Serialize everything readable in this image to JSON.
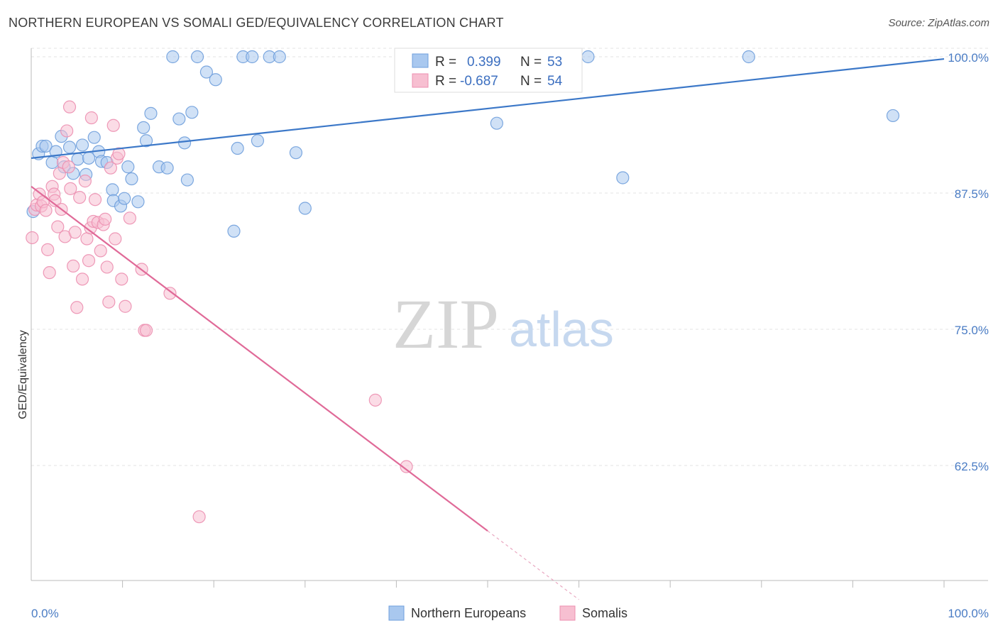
{
  "title": "NORTHERN EUROPEAN VS SOMALI GED/EQUIVALENCY CORRELATION CHART",
  "source": "Source: ZipAtlas.com",
  "watermark": {
    "zip": "ZIP",
    "atlas": "atlas"
  },
  "legend_top": {
    "r_label": "R =",
    "n_label": "N =",
    "rows": [
      {
        "r": "0.399",
        "n": "53",
        "color": "#a9c8ef",
        "stroke": "#6f9fdc"
      },
      {
        "r": "-0.687",
        "n": "54",
        "color": "#f7bfd1",
        "stroke": "#ec8fb0"
      }
    ]
  },
  "legend_bottom": [
    {
      "label": "Northern Europeans",
      "color": "#a9c8ef",
      "stroke": "#6f9fdc"
    },
    {
      "label": "Somalis",
      "color": "#f7bfd1",
      "stroke": "#ec8fb0"
    }
  ],
  "chart_data": {
    "type": "scatter",
    "title": "NORTHERN EUROPEAN VS SOMALI GED/EQUIVALENCY CORRELATION CHART",
    "xlabel": "",
    "ylabel": "GED/Equivalency",
    "xlim": [
      0,
      100
    ],
    "ylim": [
      50,
      101
    ],
    "x_tick_labels": [
      "0.0%",
      "100.0%"
    ],
    "y_tick_labels": [
      "100.0%",
      "87.5%",
      "75.0%",
      "62.5%"
    ],
    "y_ticks": [
      100,
      87.5,
      75,
      62.5
    ],
    "grid": true,
    "colors": {
      "blue": "#3c78c8",
      "pink": "#e06a98",
      "blue_fill": "#a9c8ef",
      "pink_fill": "#f7bfd1"
    },
    "series": [
      {
        "name": "Northern Europeans",
        "color": "#a9c8ef",
        "trend": {
          "x": [
            0,
            100
          ],
          "y": [
            90.7,
            99.8
          ],
          "color": "#3c78c8"
        },
        "points": [
          [
            0.2,
            85.8
          ],
          [
            0.8,
            91.1
          ],
          [
            1.2,
            91.8
          ],
          [
            1.6,
            91.8
          ],
          [
            2.3,
            90.3
          ],
          [
            2.7,
            91.3
          ],
          [
            3.3,
            92.7
          ],
          [
            3.6,
            89.9
          ],
          [
            4.2,
            91.7
          ],
          [
            4.6,
            89.3
          ],
          [
            5.1,
            90.6
          ],
          [
            5.6,
            91.9
          ],
          [
            6.0,
            89.2
          ],
          [
            6.3,
            90.7
          ],
          [
            6.9,
            92.6
          ],
          [
            7.4,
            91.3
          ],
          [
            7.7,
            90.4
          ],
          [
            8.3,
            90.3
          ],
          [
            8.9,
            87.8
          ],
          [
            9.0,
            86.8
          ],
          [
            9.8,
            86.3
          ],
          [
            10.2,
            87.0
          ],
          [
            10.6,
            89.9
          ],
          [
            11.0,
            88.8
          ],
          [
            11.7,
            86.7
          ],
          [
            12.3,
            93.5
          ],
          [
            12.6,
            92.3
          ],
          [
            13.1,
            94.8
          ],
          [
            14.0,
            89.9
          ],
          [
            14.9,
            89.8
          ],
          [
            15.5,
            100.0
          ],
          [
            16.2,
            94.3
          ],
          [
            16.8,
            92.1
          ],
          [
            17.1,
            88.7
          ],
          [
            17.6,
            94.9
          ],
          [
            18.2,
            100.0
          ],
          [
            19.2,
            98.6
          ],
          [
            20.2,
            97.9
          ],
          [
            22.2,
            84.0
          ],
          [
            22.6,
            91.6
          ],
          [
            23.2,
            100.0
          ],
          [
            24.2,
            100.0
          ],
          [
            24.8,
            92.3
          ],
          [
            26.1,
            100.0
          ],
          [
            27.2,
            100.0
          ],
          [
            29.0,
            91.2
          ],
          [
            30.0,
            86.1
          ],
          [
            41.0,
            100.0
          ],
          [
            51.0,
            93.9
          ],
          [
            61.0,
            100.0
          ],
          [
            64.8,
            88.9
          ],
          [
            78.6,
            100.0
          ],
          [
            94.4,
            94.6
          ]
        ]
      },
      {
        "name": "Somalis",
        "color": "#f7bfd1",
        "trend": {
          "x": [
            0,
            50
          ],
          "y": [
            88.1,
            56.5
          ],
          "color": "#e06a98",
          "dashed_to": {
            "x": 60,
            "y": 50.2
          }
        },
        "points": [
          [
            0.1,
            83.4
          ],
          [
            0.4,
            86.0
          ],
          [
            0.6,
            86.4
          ],
          [
            0.9,
            87.4
          ],
          [
            1.1,
            86.3
          ],
          [
            1.3,
            86.7
          ],
          [
            1.6,
            85.9
          ],
          [
            1.8,
            82.3
          ],
          [
            2.0,
            80.2
          ],
          [
            2.3,
            88.1
          ],
          [
            2.5,
            87.4
          ],
          [
            2.6,
            86.8
          ],
          [
            2.9,
            84.4
          ],
          [
            3.1,
            89.3
          ],
          [
            3.3,
            86.0
          ],
          [
            3.5,
            90.3
          ],
          [
            3.7,
            83.5
          ],
          [
            3.9,
            93.2
          ],
          [
            4.1,
            89.9
          ],
          [
            4.2,
            95.4
          ],
          [
            4.3,
            87.9
          ],
          [
            4.6,
            80.8
          ],
          [
            4.8,
            83.9
          ],
          [
            5.0,
            77.0
          ],
          [
            5.3,
            87.1
          ],
          [
            5.6,
            79.6
          ],
          [
            5.9,
            88.6
          ],
          [
            6.1,
            83.3
          ],
          [
            6.3,
            81.3
          ],
          [
            6.5,
            84.3
          ],
          [
            6.6,
            94.4
          ],
          [
            6.8,
            84.9
          ],
          [
            7.0,
            86.9
          ],
          [
            7.3,
            84.8
          ],
          [
            7.6,
            82.2
          ],
          [
            7.9,
            84.6
          ],
          [
            8.1,
            85.1
          ],
          [
            8.3,
            80.7
          ],
          [
            8.5,
            77.5
          ],
          [
            8.7,
            89.8
          ],
          [
            9.0,
            93.7
          ],
          [
            9.2,
            83.3
          ],
          [
            9.4,
            90.7
          ],
          [
            9.6,
            91.1
          ],
          [
            9.9,
            79.6
          ],
          [
            10.3,
            77.1
          ],
          [
            10.8,
            85.2
          ],
          [
            12.1,
            80.5
          ],
          [
            12.4,
            74.9
          ],
          [
            12.6,
            74.9
          ],
          [
            15.2,
            78.3
          ],
          [
            18.4,
            57.8
          ],
          [
            37.7,
            68.5
          ],
          [
            41.1,
            62.4
          ]
        ]
      }
    ]
  }
}
